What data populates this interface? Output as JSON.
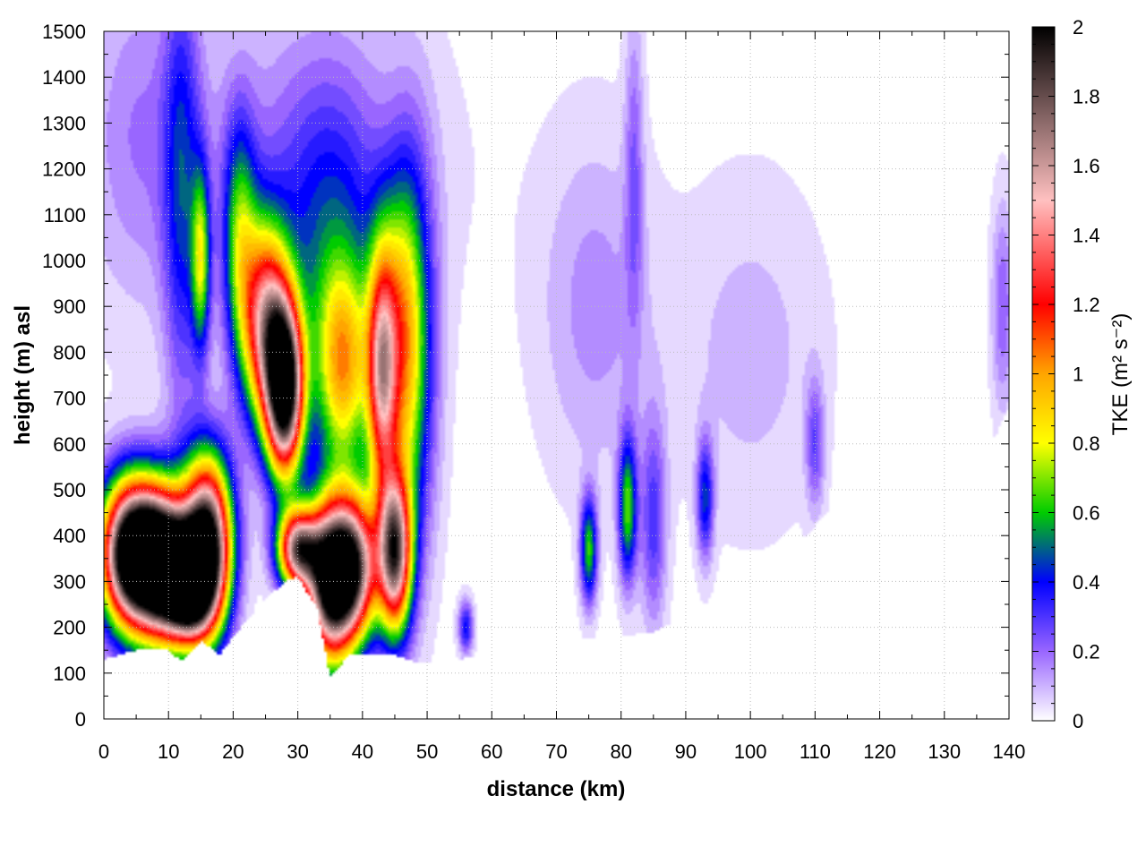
{
  "chart_data": {
    "type": "heatmap",
    "xlabel": "distance (km)",
    "ylabel": "height (m) asl",
    "colorbar_label": "TKE (m² s⁻²)",
    "xlim": [
      0,
      140
    ],
    "ylim": [
      0,
      1500
    ],
    "clim": [
      0,
      2
    ],
    "x_ticks": [
      "0",
      "10",
      "20",
      "30",
      "40",
      "50",
      "60",
      "70",
      "80",
      "90",
      "100",
      "110",
      "120",
      "130",
      "140"
    ],
    "y_ticks": [
      "0",
      "100",
      "200",
      "300",
      "400",
      "500",
      "600",
      "700",
      "800",
      "900",
      "1000",
      "1100",
      "1200",
      "1300",
      "1400",
      "1500"
    ],
    "colorbar_ticks": [
      "0",
      "0.2",
      "0.4",
      "0.6",
      "0.8",
      "1",
      "1.2",
      "1.4",
      "1.6",
      "1.8",
      "2"
    ],
    "grid": true,
    "colormap": [
      {
        "v": 0.0,
        "color": "#ffffff"
      },
      {
        "v": 0.2,
        "color": "#9966ff"
      },
      {
        "v": 0.4,
        "color": "#0000ff"
      },
      {
        "v": 0.6,
        "color": "#00cc00"
      },
      {
        "v": 0.8,
        "color": "#ffff00"
      },
      {
        "v": 1.0,
        "color": "#ffa500"
      },
      {
        "v": 1.2,
        "color": "#ff0000"
      },
      {
        "v": 1.5,
        "color": "#ffc0c0"
      },
      {
        "v": 2.0,
        "color": "#000000"
      }
    ],
    "terrain_floor": [
      [
        0,
        130
      ],
      [
        5,
        150
      ],
      [
        10,
        150
      ],
      [
        12,
        125
      ],
      [
        15,
        170
      ],
      [
        18,
        140
      ],
      [
        20,
        180
      ],
      [
        25,
        260
      ],
      [
        28,
        300
      ],
      [
        30,
        310
      ],
      [
        33,
        240
      ],
      [
        35,
        90
      ],
      [
        38,
        140
      ],
      [
        40,
        140
      ],
      [
        45,
        140
      ],
      [
        48,
        125
      ],
      [
        50,
        120
      ],
      [
        55,
        130
      ],
      [
        60,
        145
      ],
      [
        65,
        160
      ],
      [
        70,
        170
      ],
      [
        75,
        175
      ],
      [
        80,
        180
      ],
      [
        85,
        190
      ],
      [
        90,
        220
      ],
      [
        95,
        260
      ],
      [
        100,
        290
      ],
      [
        105,
        350
      ],
      [
        110,
        420
      ],
      [
        113,
        470
      ],
      [
        115,
        490
      ],
      [
        118,
        450
      ],
      [
        120,
        430
      ],
      [
        123,
        470
      ],
      [
        125,
        520
      ],
      [
        128,
        560
      ],
      [
        130,
        530
      ],
      [
        132,
        510
      ],
      [
        135,
        560
      ],
      [
        138,
        620
      ],
      [
        140,
        680
      ]
    ],
    "tke_features": [
      {
        "x": 4,
        "z": 360,
        "sx": 3.2,
        "sz": 110,
        "peak": 2.2
      },
      {
        "x": 9,
        "z": 340,
        "sx": 3.0,
        "sz": 110,
        "peak": 2.2
      },
      {
        "x": 16,
        "z": 380,
        "sx": 2.6,
        "sz": 130,
        "peak": 2.1
      },
      {
        "x": 13,
        "z": 290,
        "sx": 2.5,
        "sz": 80,
        "peak": 1.8
      },
      {
        "x": 28,
        "z": 720,
        "sx": 2.0,
        "sz": 130,
        "peak": 2.1
      },
      {
        "x": 25,
        "z": 860,
        "sx": 2.5,
        "sz": 150,
        "peak": 1.3
      },
      {
        "x": 35,
        "z": 300,
        "sx": 2.6,
        "sz": 120,
        "peak": 2.1
      },
      {
        "x": 30,
        "z": 370,
        "sx": 2.2,
        "sz": 60,
        "peak": 1.6
      },
      {
        "x": 39,
        "z": 330,
        "sx": 2.5,
        "sz": 110,
        "peak": 1.5
      },
      {
        "x": 45,
        "z": 360,
        "sx": 1.8,
        "sz": 120,
        "peak": 1.7
      },
      {
        "x": 37,
        "z": 760,
        "sx": 3.0,
        "sz": 160,
        "peak": 0.85
      },
      {
        "x": 43,
        "z": 760,
        "sx": 1.6,
        "sz": 190,
        "peak": 1.25
      },
      {
        "x": 46,
        "z": 820,
        "sx": 2.0,
        "sz": 230,
        "peak": 0.55
      },
      {
        "x": 15,
        "z": 1000,
        "sx": 1.0,
        "sz": 140,
        "peak": 0.65
      },
      {
        "x": 12,
        "z": 1150,
        "sx": 2.0,
        "sz": 350,
        "peak": 0.35
      },
      {
        "x": 21,
        "z": 1050,
        "sx": 1.8,
        "sz": 180,
        "peak": 0.55
      },
      {
        "x": 35,
        "z": 1050,
        "sx": 6.0,
        "sz": 250,
        "peak": 0.35
      },
      {
        "x": 48,
        "z": 800,
        "sx": 2.5,
        "sz": 300,
        "peak": 0.5
      },
      {
        "x": 25,
        "z": 1200,
        "sx": 18.0,
        "sz": 280,
        "peak": 0.12
      },
      {
        "x": 5,
        "z": 1300,
        "sx": 5.0,
        "sz": 250,
        "peak": 0.12
      },
      {
        "x": 56,
        "z": 200,
        "sx": 0.8,
        "sz": 40,
        "peak": 0.4
      },
      {
        "x": 75,
        "z": 370,
        "sx": 0.9,
        "sz": 80,
        "peak": 0.62
      },
      {
        "x": 81,
        "z": 460,
        "sx": 1.0,
        "sz": 110,
        "peak": 0.64
      },
      {
        "x": 85,
        "z": 430,
        "sx": 1.4,
        "sz": 160,
        "peak": 0.3
      },
      {
        "x": 93,
        "z": 480,
        "sx": 0.9,
        "sz": 90,
        "peak": 0.42
      },
      {
        "x": 76,
        "z": 900,
        "sx": 6.0,
        "sz": 260,
        "peak": 0.15
      },
      {
        "x": 82,
        "z": 1200,
        "sx": 1.0,
        "sz": 250,
        "peak": 0.2
      },
      {
        "x": 110,
        "z": 600,
        "sx": 1.0,
        "sz": 100,
        "peak": 0.25
      },
      {
        "x": 139,
        "z": 900,
        "sx": 1.2,
        "sz": 160,
        "peak": 0.22
      },
      {
        "x": 100,
        "z": 800,
        "sx": 8.0,
        "sz": 260,
        "peak": 0.1
      }
    ]
  }
}
